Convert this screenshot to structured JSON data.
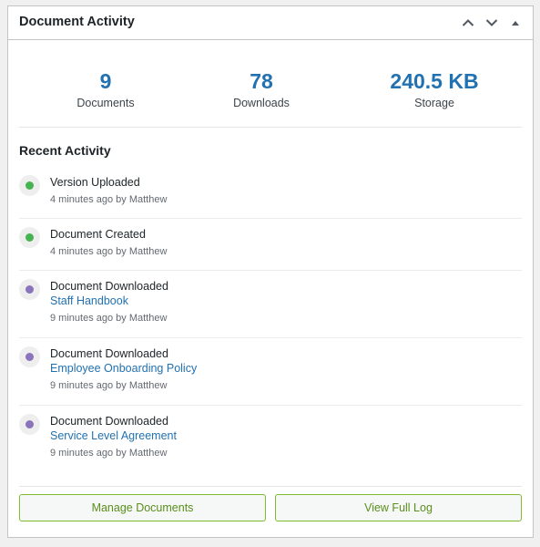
{
  "widget": {
    "title": "Document Activity"
  },
  "icons": {
    "move_up": "chevron-up-icon",
    "move_down": "chevron-down-icon",
    "toggle": "triangle-up-icon"
  },
  "stats": [
    {
      "value": "9",
      "label": "Documents"
    },
    {
      "value": "78",
      "label": "Downloads"
    },
    {
      "value": "240.5 KB",
      "label": "Storage"
    }
  ],
  "recent": {
    "title": "Recent Activity",
    "items": [
      {
        "title": "Version Uploaded",
        "link": "",
        "meta": "4 minutes ago by Matthew",
        "status": "green"
      },
      {
        "title": "Document Created",
        "link": "",
        "meta": "4 minutes ago by Matthew",
        "status": "green"
      },
      {
        "title": "Document Downloaded",
        "link": "Staff Handbook",
        "meta": "9 minutes ago by Matthew",
        "status": "purple"
      },
      {
        "title": "Document Downloaded",
        "link": "Employee Onboarding Policy",
        "meta": "9 minutes ago by Matthew",
        "status": "purple"
      },
      {
        "title": "Document Downloaded",
        "link": "Service Level Agreement",
        "meta": "9 minutes ago by Matthew",
        "status": "purple"
      }
    ]
  },
  "actions": {
    "manage_label": "Manage Documents",
    "log_label": "View Full Log"
  },
  "colors": {
    "accent": "#2271b1",
    "green_dot": "#46b450",
    "purple_dot": "#8a74bb",
    "button_border": "#7fba31",
    "button_text": "#5a8f1c"
  }
}
